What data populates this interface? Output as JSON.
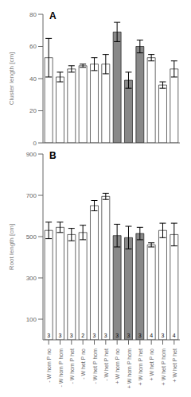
{
  "chart_data": [
    {
      "type": "bar",
      "categories": [
        "- W hom P no",
        "- W hom P hom",
        "- W hom P het",
        "- W het P no",
        "- W het P hom",
        "- W het P het",
        "+ W hom P no",
        "+ W hom P hom",
        "+ W hom P het",
        "+ W het P no",
        "+ W het P hom",
        "+ W het P het"
      ],
      "values": [
        53,
        41,
        46,
        48,
        49,
        49,
        69,
        39,
        60,
        53,
        36,
        46
      ],
      "errors": [
        12,
        3,
        2,
        1,
        4,
        6,
        6,
        5,
        4,
        2,
        2,
        5
      ],
      "colors": [
        "white",
        "white",
        "white",
        "white",
        "white",
        "white",
        "#888888",
        "#888888",
        "#888888",
        "white",
        "white",
        "white"
      ],
      "ylabel": "Cluster length [cm]",
      "ylim": [
        0,
        80
      ],
      "yticks": [
        0,
        20,
        40,
        60,
        80
      ],
      "annotations": [
        "A"
      ],
      "tick_labels": "y"
    },
    {
      "type": "bar",
      "categories": [
        "- W hom P no",
        "- W hom P hom",
        "- W hom P het",
        "- W het P no",
        "- W het P hom",
        "- W het P het",
        "+ W hom P no",
        "+ W hom P hom",
        "+ W hom P het",
        "+ W het P no",
        "+ W het P hom",
        "+ W het P het"
      ],
      "values": [
        530,
        545,
        510,
        520,
        650,
        695,
        505,
        495,
        515,
        460,
        530,
        510
      ],
      "errors": [
        40,
        25,
        30,
        35,
        25,
        15,
        55,
        55,
        30,
        10,
        35,
        55
      ],
      "n": [
        3,
        3,
        3,
        2,
        3,
        3,
        3,
        3,
        3,
        4,
        3,
        4
      ],
      "colors": [
        "white",
        "white",
        "white",
        "white",
        "white",
        "white",
        "#888888",
        "#888888",
        "#888888",
        "white",
        "white",
        "white"
      ],
      "ylabel": "Root length [cm]",
      "ylim": [
        0,
        900
      ],
      "yticks": [
        100,
        300,
        500,
        700,
        900
      ],
      "annotations": [
        "B"
      ]
    }
  ]
}
